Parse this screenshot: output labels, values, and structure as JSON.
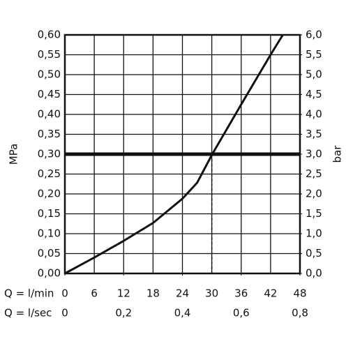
{
  "chart_data": {
    "type": "line",
    "x_label": "Q = l/min",
    "x2_label": "Q = l/sec",
    "y_label": "MPa",
    "y2_label": "bar",
    "x": [
      0,
      6,
      12,
      18,
      24,
      27,
      30,
      36,
      42,
      44.5
    ],
    "series": [
      {
        "color": "#111111",
        "values": [
          0,
          0.04,
          0.082,
          0.127,
          0.188,
          0.228,
          0.298,
          0.425,
          0.55,
          0.6
        ]
      }
    ],
    "xlim": [
      0,
      48
    ],
    "xticks": [
      0,
      6,
      12,
      18,
      24,
      30,
      36,
      42,
      48
    ],
    "x2lim": [
      0,
      0.8
    ],
    "x2ticks": [
      0,
      {
        "value": 0.2,
        "label": "0,2"
      },
      {
        "value": 0.4,
        "label": "0,4"
      },
      {
        "value": 0.6,
        "label": "0,6"
      },
      {
        "value": 0.8,
        "label": "0,8"
      }
    ],
    "ylim": [
      0,
      0.6
    ],
    "yticks": [
      {
        "value": 0,
        "label": "0,00"
      },
      {
        "value": 0.05,
        "label": "0,05"
      },
      {
        "value": 0.1,
        "label": "0,10"
      },
      {
        "value": 0.15,
        "label": "0,15"
      },
      {
        "value": 0.2,
        "label": "0,20"
      },
      {
        "value": 0.25,
        "label": "0,25"
      },
      {
        "value": 0.3,
        "label": "0,30"
      },
      {
        "value": 0.35,
        "label": "0,35"
      },
      {
        "value": 0.4,
        "label": "0,40"
      },
      {
        "value": 0.45,
        "label": "0,45"
      },
      {
        "value": 0.5,
        "label": "0,50"
      },
      {
        "value": 0.55,
        "label": "0,55"
      },
      {
        "value": 0.6,
        "label": "0,60"
      }
    ],
    "y2lim": [
      0,
      6
    ],
    "y2ticks": [
      {
        "value": 0,
        "label": "0,0"
      },
      {
        "value": 0.5,
        "label": "0,5"
      },
      {
        "value": 1,
        "label": "1,0"
      },
      {
        "value": 1.5,
        "label": "1,5"
      },
      {
        "value": 2,
        "label": "2,0"
      },
      {
        "value": 2.5,
        "label": "2,5"
      },
      {
        "value": 3,
        "label": "3,0"
      },
      {
        "value": 3.5,
        "label": "3,5"
      },
      {
        "value": 4,
        "label": "4,0"
      },
      {
        "value": 4.5,
        "label": "4,5"
      },
      {
        "value": 5,
        "label": "5,0"
      },
      {
        "value": 5.5,
        "label": "5,5"
      },
      {
        "value": 6,
        "label": "6,0"
      }
    ],
    "hline": 0.3,
    "vline": 30,
    "grid": true
  }
}
